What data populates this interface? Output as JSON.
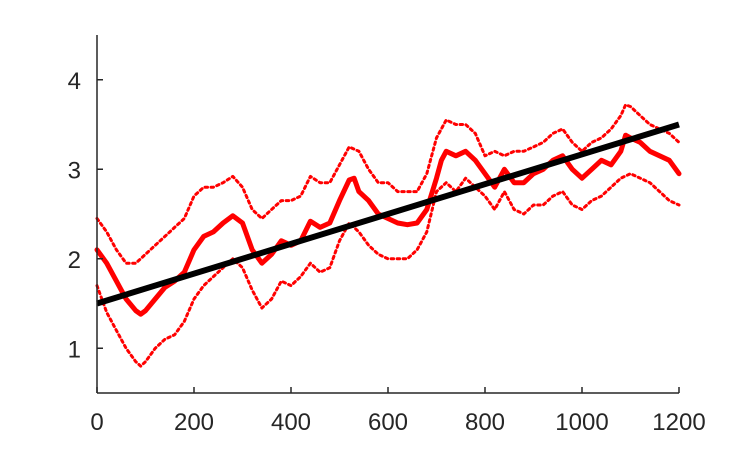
{
  "chart_data": {
    "type": "line",
    "title": "",
    "xlabel": "",
    "ylabel": "",
    "xlim": [
      0,
      1200
    ],
    "ylim": [
      0.5,
      4.5
    ],
    "grid": false,
    "x_ticks": [
      0,
      200,
      400,
      600,
      800,
      1000,
      1200
    ],
    "y_ticks": [
      1,
      2,
      3,
      4
    ],
    "x_tick_labels": [
      "0",
      "200",
      "400",
      "600",
      "800",
      "1000",
      "1200"
    ],
    "y_tick_labels": [
      "1",
      "2",
      "3",
      "4"
    ],
    "colors": {
      "mean": "#ff0000",
      "bounds": "#ff0000",
      "trend": "#000000",
      "axis": "#262626"
    },
    "series": [
      {
        "role": "mean",
        "style": "solid",
        "x": [
          0,
          20,
          40,
          60,
          80,
          90,
          100,
          120,
          140,
          160,
          180,
          200,
          220,
          240,
          260,
          280,
          300,
          320,
          340,
          360,
          380,
          400,
          420,
          440,
          460,
          480,
          500,
          520,
          530,
          540,
          560,
          580,
          600,
          620,
          640,
          660,
          680,
          700,
          710,
          720,
          740,
          760,
          780,
          800,
          820,
          840,
          860,
          880,
          900,
          920,
          940,
          960,
          980,
          1000,
          1020,
          1040,
          1060,
          1080,
          1090,
          1100,
          1120,
          1140,
          1160,
          1180,
          1200
        ],
        "y": [
          2.1,
          1.95,
          1.75,
          1.55,
          1.42,
          1.38,
          1.42,
          1.55,
          1.68,
          1.75,
          1.85,
          2.1,
          2.25,
          2.3,
          2.4,
          2.48,
          2.4,
          2.1,
          1.95,
          2.05,
          2.2,
          2.15,
          2.2,
          2.42,
          2.35,
          2.4,
          2.65,
          2.88,
          2.9,
          2.75,
          2.65,
          2.5,
          2.45,
          2.4,
          2.38,
          2.4,
          2.55,
          2.9,
          3.1,
          3.2,
          3.15,
          3.2,
          3.1,
          2.95,
          2.8,
          3.0,
          2.85,
          2.85,
          2.95,
          3.0,
          3.1,
          3.15,
          3.0,
          2.9,
          3.0,
          3.1,
          3.05,
          3.2,
          3.38,
          3.35,
          3.3,
          3.2,
          3.15,
          3.1,
          2.95
        ]
      },
      {
        "role": "upper-bound",
        "style": "dotted",
        "x": [
          0,
          20,
          40,
          60,
          80,
          100,
          120,
          140,
          160,
          180,
          200,
          220,
          240,
          260,
          280,
          300,
          320,
          340,
          360,
          380,
          400,
          420,
          440,
          460,
          480,
          500,
          520,
          540,
          560,
          580,
          600,
          620,
          640,
          660,
          680,
          700,
          720,
          740,
          760,
          780,
          800,
          820,
          840,
          860,
          880,
          900,
          920,
          940,
          960,
          980,
          1000,
          1020,
          1040,
          1060,
          1080,
          1090,
          1100,
          1120,
          1140,
          1160,
          1180,
          1200
        ],
        "y": [
          2.45,
          2.3,
          2.1,
          1.95,
          1.95,
          2.05,
          2.15,
          2.25,
          2.35,
          2.45,
          2.7,
          2.8,
          2.8,
          2.85,
          2.92,
          2.8,
          2.55,
          2.45,
          2.55,
          2.65,
          2.65,
          2.7,
          2.92,
          2.85,
          2.85,
          3.05,
          3.25,
          3.2,
          3.0,
          2.85,
          2.85,
          2.75,
          2.75,
          2.75,
          2.95,
          3.35,
          3.55,
          3.5,
          3.5,
          3.4,
          3.15,
          3.2,
          3.15,
          3.2,
          3.2,
          3.25,
          3.3,
          3.4,
          3.45,
          3.3,
          3.2,
          3.3,
          3.35,
          3.45,
          3.6,
          3.72,
          3.7,
          3.6,
          3.5,
          3.45,
          3.4,
          3.3
        ]
      },
      {
        "role": "lower-bound",
        "style": "dotted",
        "x": [
          0,
          20,
          40,
          60,
          80,
          90,
          100,
          120,
          140,
          160,
          180,
          200,
          220,
          240,
          260,
          280,
          300,
          320,
          340,
          360,
          380,
          400,
          420,
          440,
          460,
          480,
          500,
          520,
          540,
          560,
          580,
          600,
          620,
          640,
          660,
          680,
          700,
          720,
          740,
          760,
          780,
          800,
          820,
          840,
          860,
          880,
          900,
          920,
          940,
          960,
          980,
          1000,
          1020,
          1040,
          1060,
          1080,
          1100,
          1120,
          1140,
          1160,
          1180,
          1200
        ],
        "y": [
          1.7,
          1.4,
          1.2,
          1.0,
          0.85,
          0.8,
          0.85,
          1.0,
          1.1,
          1.15,
          1.3,
          1.55,
          1.7,
          1.8,
          1.9,
          2.0,
          1.9,
          1.65,
          1.45,
          1.55,
          1.75,
          1.7,
          1.8,
          1.95,
          1.85,
          1.9,
          2.2,
          2.4,
          2.3,
          2.15,
          2.05,
          2.0,
          2.0,
          2.0,
          2.1,
          2.3,
          2.75,
          2.85,
          2.75,
          2.9,
          2.8,
          2.7,
          2.55,
          2.75,
          2.55,
          2.5,
          2.6,
          2.6,
          2.7,
          2.75,
          2.6,
          2.55,
          2.65,
          2.7,
          2.8,
          2.9,
          2.95,
          2.9,
          2.85,
          2.75,
          2.65,
          2.6
        ]
      },
      {
        "role": "trend",
        "style": "solid",
        "x": [
          0,
          1200
        ],
        "y": [
          1.5,
          3.5
        ]
      }
    ]
  }
}
